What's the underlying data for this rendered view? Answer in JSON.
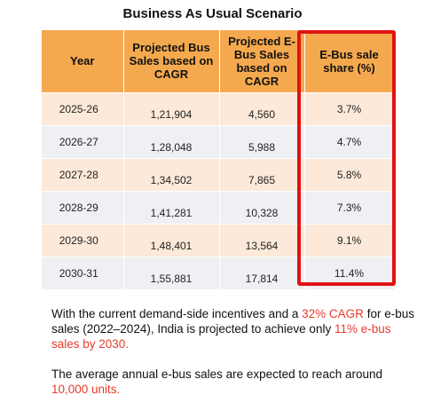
{
  "title": "Business As Usual Scenario",
  "table": {
    "headers": [
      "Year",
      "Projected  Bus Sales based on CAGR",
      "Projected E-Bus Sales based on CAGR",
      "E-Bus sale share (%)"
    ],
    "rows": [
      [
        "2025-26",
        "1,21,904",
        "4,560",
        "3.7%"
      ],
      [
        "2026-27",
        "1,28,048",
        "5,988",
        "4.7%"
      ],
      [
        "2027-28",
        "1,34,502",
        "7,865",
        "5.8%"
      ],
      [
        "2028-29",
        "1,41,281",
        "10,328",
        "7.3%"
      ],
      [
        "2029-30",
        "1,48,401",
        "13,564",
        "9.1%"
      ],
      [
        "2030-31",
        "1,55,881",
        "17,814",
        "11.4%"
      ]
    ]
  },
  "colors": {
    "header_bg": "#f5a94e",
    "row_odd": "#fde9d9",
    "row_even": "#eef0f4",
    "highlight_border": "#e01313",
    "highlight_text": "#e53b2c"
  },
  "paragraph1": {
    "t1": "With the current demand-side incentives and a ",
    "h1": "32% CAGR",
    "t2": " for e-bus sales (2022–2024), India is projected to achieve only ",
    "h2": "11% e-bus sales by 2030.",
    "t3": ""
  },
  "paragraph2": {
    "t1": "The average annual e-bus sales are expected to reach around ",
    "h1": "10,000 units."
  },
  "chart_data": {
    "type": "table",
    "title": "Business As Usual Scenario",
    "columns": [
      "Year",
      "Projected  Bus Sales based on CAGR",
      "Projected E-Bus Sales based on CAGR",
      "E-Bus sale share (%)"
    ],
    "categories": [
      "2025-26",
      "2026-27",
      "2027-28",
      "2028-29",
      "2029-30",
      "2030-31"
    ],
    "series": [
      {
        "name": "Projected  Bus Sales based on CAGR",
        "values": [
          121904,
          128048,
          134502,
          141281,
          148401,
          155881
        ]
      },
      {
        "name": "Projected E-Bus Sales based on CAGR",
        "values": [
          4560,
          5988,
          7865,
          10328,
          13564,
          17814
        ]
      },
      {
        "name": "E-Bus sale share (%)",
        "values": [
          3.7,
          4.7,
          5.8,
          7.3,
          9.1,
          11.4
        ]
      }
    ]
  }
}
